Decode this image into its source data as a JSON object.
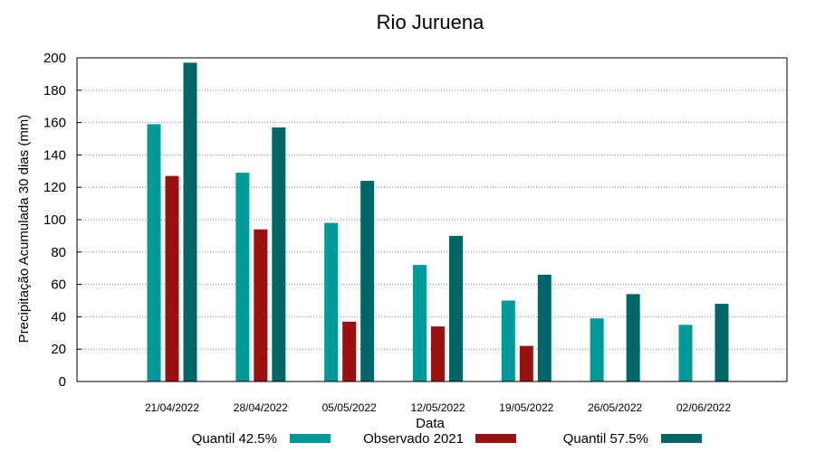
{
  "chart_data": {
    "type": "bar",
    "title": "Rio Juruena",
    "xlabel": "Data",
    "ylabel": "Precipitação Acumulada 30 dias (mm)",
    "ylim": [
      0,
      200
    ],
    "yticks": [
      0,
      20,
      40,
      60,
      80,
      100,
      120,
      140,
      160,
      180,
      200
    ],
    "grid": true,
    "legend_position": "bottom",
    "categories": [
      "21/04/2022",
      "28/04/2022",
      "05/05/2022",
      "12/05/2022",
      "19/05/2022",
      "26/05/2022",
      "02/06/2022"
    ],
    "series": [
      {
        "name": "Quantil 42.5%",
        "color": "#009999",
        "values": [
          159,
          129,
          98,
          72,
          50,
          39,
          35
        ]
      },
      {
        "name": "Observado 2021",
        "color": "#9b1111",
        "values": [
          127,
          94,
          37,
          34,
          22,
          null,
          null
        ]
      },
      {
        "name": "Quantil 57.5%",
        "color": "#006666",
        "values": [
          197,
          157,
          124,
          90,
          66,
          54,
          48
        ]
      }
    ]
  }
}
